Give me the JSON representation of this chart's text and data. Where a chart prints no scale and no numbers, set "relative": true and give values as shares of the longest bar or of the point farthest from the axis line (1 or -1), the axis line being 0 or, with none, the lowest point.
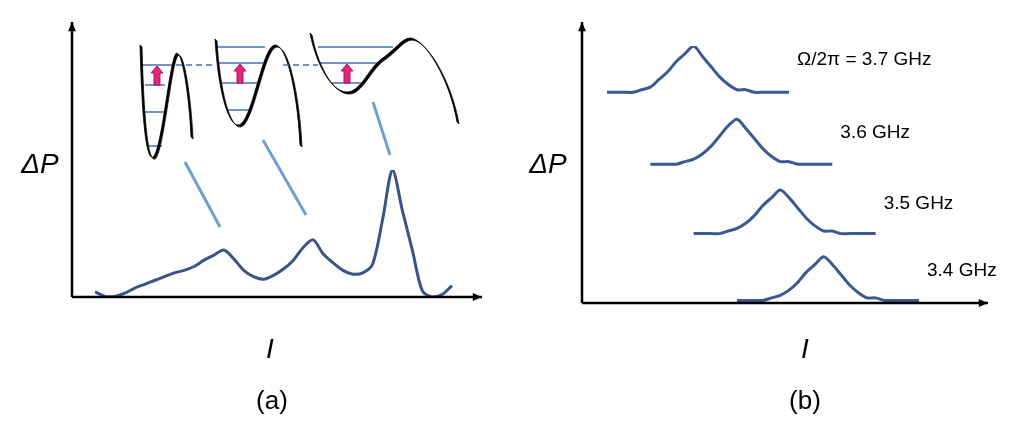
{
  "chart_data": [
    {
      "type": "line",
      "title": "(a)",
      "xlabel": "I",
      "ylabel": "ΔP",
      "relative": true,
      "categories": [
        null,
        null,
        null,
        null,
        null,
        null,
        null,
        null,
        null,
        null,
        null,
        null,
        null,
        null,
        null,
        null,
        null,
        null,
        null,
        null,
        null,
        null,
        null,
        null,
        null,
        null,
        null,
        null,
        null,
        null,
        null,
        null,
        null,
        null,
        null,
        null,
        null
      ],
      "color": "#3b5488",
      "values": [
        0.04,
        0.005,
        0.005,
        0.03,
        0.07,
        0.1,
        0.13,
        0.16,
        0.19,
        0.21,
        0.24,
        0.29,
        0.33,
        0.37,
        0.3,
        0.21,
        0.16,
        0.14,
        0.17,
        0.22,
        0.29,
        0.39,
        0.45,
        0.34,
        0.27,
        0.21,
        0.18,
        0.19,
        0.26,
        0.61,
        1,
        0.68,
        0.37,
        0.05,
        0,
        0.02,
        0.09
      ]
    },
    {
      "type": "line",
      "title": "(b)",
      "xlabel": "I",
      "ylabel": "ΔP",
      "relative": true,
      "categories": [
        null,
        null,
        null,
        null,
        null,
        null,
        null,
        null,
        null,
        null,
        null,
        null,
        null,
        null,
        null,
        null,
        null,
        null,
        null,
        null,
        null,
        null,
        null,
        null,
        null,
        null,
        null,
        null,
        null,
        null,
        null,
        null,
        null,
        null,
        null,
        null,
        null
      ],
      "series": [
        {
          "name": "Ω/2π = 3.7 GHz",
          "color": "#3b5a94",
          "values": [
            0.82,
            0.82,
            0.82,
            0.82,
            0.83,
            0.84,
            0.87,
            0.9,
            0.94,
            0.97,
            1,
            0.96,
            0.92,
            0.88,
            0.85,
            0.83,
            0.83,
            0.82,
            0.82,
            0.82,
            0.82,
            0.82,
            null,
            null,
            null,
            null,
            null,
            null,
            null,
            null,
            null,
            null,
            null,
            null,
            null,
            null,
            null
          ]
        },
        {
          "name": "3.6 GHz",
          "color": "#3b5a94",
          "values": [
            null,
            null,
            null,
            null,
            null,
            0.54,
            0.54,
            0.54,
            0.54,
            0.55,
            0.56,
            0.58,
            0.61,
            0.65,
            0.69,
            0.715,
            0.68,
            0.64,
            0.6,
            0.57,
            0.55,
            0.55,
            0.54,
            0.54,
            0.54,
            0.54,
            0.54,
            null,
            null,
            null,
            null,
            null,
            null,
            null,
            null,
            null,
            null
          ]
        },
        {
          "name": "3.5 GHz",
          "color": "#3b5a94",
          "values": [
            null,
            null,
            null,
            null,
            null,
            null,
            null,
            null,
            null,
            null,
            0.27,
            0.27,
            0.27,
            0.27,
            0.28,
            0.29,
            0.31,
            0.34,
            0.38,
            0.41,
            0.44,
            0.41,
            0.37,
            0.33,
            0.3,
            0.28,
            0.28,
            0.27,
            0.27,
            0.27,
            0.27,
            0.27,
            null,
            null,
            null,
            null,
            null
          ]
        },
        {
          "name": "3.4 GHz",
          "color": "#3b5a94",
          "values": [
            null,
            null,
            null,
            null,
            null,
            null,
            null,
            null,
            null,
            null,
            null,
            null,
            null,
            null,
            null,
            0.01,
            0.01,
            0.01,
            0.01,
            0.02,
            0.03,
            0.05,
            0.08,
            0.12,
            0.15,
            0.18,
            0.15,
            0.11,
            0.07,
            0.04,
            0.02,
            0.02,
            0.01,
            0.01,
            0.01,
            0.01,
            0.01
          ]
        }
      ]
    }
  ]
}
